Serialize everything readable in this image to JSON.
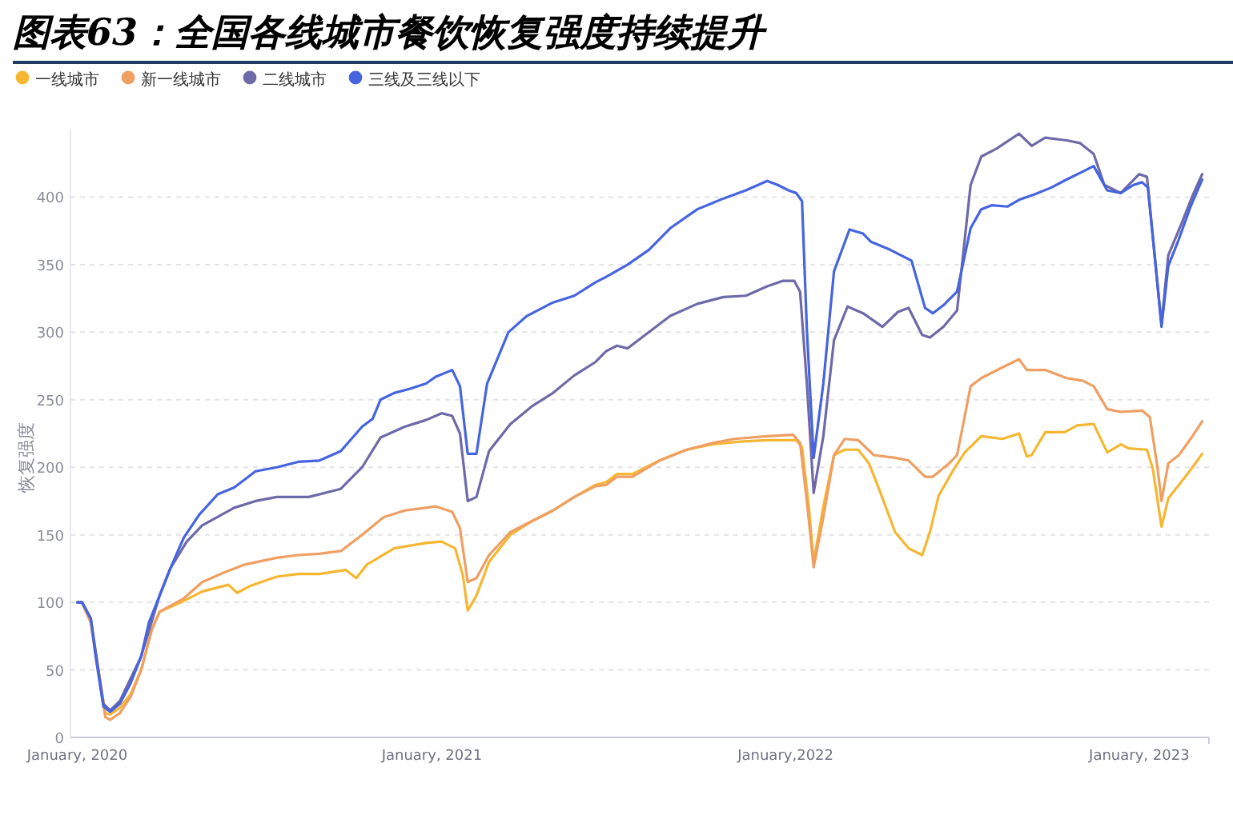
{
  "chart_data": {
    "type": "line",
    "title": "图表63：全国各线城市餐饮恢复强度持续提升",
    "ylabel": "恢复强度",
    "legend": "top left",
    "grid": "y",
    "xlim": [
      "2019-12-25",
      "2023-03-14"
    ],
    "ylim": [
      0,
      450
    ],
    "yticks": [
      0,
      50,
      100,
      150,
      200,
      250,
      300,
      350,
      400
    ],
    "xticks": [
      {
        "value": "2020-01-01",
        "label": "January, 2020"
      },
      {
        "value": "2021-01-01",
        "label": "January, 2021"
      },
      {
        "value": "2022-01-01",
        "label": "January,2022"
      },
      {
        "value": "2023-01-01",
        "label": "January, 2023"
      }
    ],
    "series": [
      {
        "name": "一线城市",
        "color": "#f5b731",
        "x": [
          "2020-01-01",
          "2020-01-06",
          "2020-01-15",
          "2020-01-30",
          "2020-02-04",
          "2020-02-14",
          "2020-02-25",
          "2020-03-07",
          "2020-03-18",
          "2020-03-26",
          "2020-04-17",
          "2020-05-09",
          "2020-06-05",
          "2020-06-14",
          "2020-06-27",
          "2020-07-25",
          "2020-08-16",
          "2020-09-07",
          "2020-10-04",
          "2020-10-15",
          "2020-10-26",
          "2020-11-23",
          "2020-12-26",
          "2021-01-11",
          "2021-01-25",
          "2021-02-02",
          "2021-02-07",
          "2021-02-16",
          "2021-03-01",
          "2021-03-23",
          "2021-04-14",
          "2021-05-06",
          "2021-05-28",
          "2021-06-19",
          "2021-06-30",
          "2021-07-11",
          "2021-07-27",
          "2021-08-24",
          "2021-09-21",
          "2021-10-18",
          "2021-11-15",
          "2021-12-13",
          "2022-01-12",
          "2022-01-18",
          "2022-01-25",
          "2022-01-30",
          "2022-02-09",
          "2022-02-20",
          "2022-03-03",
          "2022-03-17",
          "2022-03-28",
          "2022-04-08",
          "2022-04-24",
          "2022-05-08",
          "2022-05-22",
          "2022-05-30",
          "2022-06-08",
          "2022-06-24",
          "2022-07-05",
          "2022-07-22",
          "2022-08-13",
          "2022-08-30",
          "2022-09-07",
          "2022-09-12",
          "2022-09-26",
          "2022-10-16",
          "2022-10-29",
          "2022-11-15",
          "2022-11-29",
          "2022-12-13",
          "2022-12-21",
          "2023-01-09",
          "2023-01-15",
          "2023-01-24",
          "2023-01-31",
          "2023-02-11",
          "2023-02-23",
          "2023-03-07"
        ],
        "values": [
          100,
          100,
          85,
          18,
          17,
          22,
          32,
          50,
          80,
          93,
          100,
          108,
          113,
          107,
          112,
          119,
          121,
          121,
          124,
          118,
          128,
          140,
          144,
          145,
          140,
          120,
          94,
          105,
          130,
          150,
          160,
          168,
          178,
          187,
          189,
          195,
          195,
          205,
          213,
          217,
          219,
          220,
          220,
          215,
          171,
          130,
          171,
          209,
          213,
          213,
          203,
          183,
          152,
          140,
          135,
          152,
          179,
          199,
          211,
          223,
          221,
          225,
          208,
          209,
          226,
          226,
          231,
          232,
          211,
          217,
          214,
          213,
          199,
          156,
          177,
          187,
          198,
          210
        ]
      },
      {
        "name": "新一线城市",
        "color": "#ef9f62",
        "x": [
          "2020-01-01",
          "2020-01-06",
          "2020-01-15",
          "2020-01-30",
          "2020-02-04",
          "2020-02-14",
          "2020-02-25",
          "2020-03-07",
          "2020-03-18",
          "2020-03-26",
          "2020-04-20",
          "2020-05-09",
          "2020-05-31",
          "2020-06-22",
          "2020-07-25",
          "2020-08-16",
          "2020-09-07",
          "2020-09-29",
          "2020-10-21",
          "2020-11-12",
          "2020-12-04",
          "2020-12-26",
          "2021-01-05",
          "2021-01-22",
          "2021-01-30",
          "2021-02-07",
          "2021-02-16",
          "2021-03-01",
          "2021-03-23",
          "2021-04-14",
          "2021-05-06",
          "2021-05-28",
          "2021-06-19",
          "2021-06-30",
          "2021-07-11",
          "2021-07-27",
          "2021-08-24",
          "2021-09-21",
          "2021-10-18",
          "2021-11-09",
          "2021-12-13",
          "2022-01-09",
          "2022-01-16",
          "2022-01-23",
          "2022-01-30",
          "2022-02-09",
          "2022-02-20",
          "2022-03-03",
          "2022-03-17",
          "2022-04-02",
          "2022-04-24",
          "2022-05-08",
          "2022-05-25",
          "2022-06-02",
          "2022-06-19",
          "2022-06-27",
          "2022-07-11",
          "2022-07-22",
          "2022-08-13",
          "2022-08-30",
          "2022-09-07",
          "2022-09-26",
          "2022-10-18",
          "2022-11-04",
          "2022-11-15",
          "2022-11-29",
          "2022-12-13",
          "2023-01-04",
          "2023-01-12",
          "2023-01-20",
          "2023-01-24",
          "2023-01-31",
          "2023-02-11",
          "2023-02-23",
          "2023-03-07"
        ],
        "values": [
          100,
          100,
          85,
          15,
          13,
          18,
          30,
          50,
          80,
          93,
          103,
          115,
          122,
          128,
          133,
          135,
          136,
          138,
          150,
          163,
          168,
          170,
          171,
          167,
          155,
          115,
          118,
          135,
          152,
          160,
          168,
          178,
          186,
          187,
          193,
          193,
          205,
          213,
          218,
          221,
          223,
          224,
          218,
          175,
          126,
          163,
          209,
          221,
          220,
          209,
          207,
          205,
          193,
          193,
          203,
          209,
          260,
          266,
          274,
          280,
          272,
          272,
          266,
          264,
          260,
          243,
          241,
          242,
          237,
          199,
          175,
          203,
          209,
          221,
          234
        ]
      },
      {
        "name": "二线城市",
        "color": "#6e6aa8",
        "x": [
          "2020-01-01",
          "2020-01-06",
          "2020-01-15",
          "2020-01-28",
          "2020-02-04",
          "2020-02-14",
          "2020-03-07",
          "2020-03-26",
          "2020-04-06",
          "2020-04-23",
          "2020-05-09",
          "2020-06-11",
          "2020-07-03",
          "2020-07-25",
          "2020-08-27",
          "2020-09-29",
          "2020-10-21",
          "2020-11-09",
          "2020-12-04",
          "2020-12-26",
          "2021-01-11",
          "2021-01-22",
          "2021-01-30",
          "2021-02-07",
          "2021-02-16",
          "2021-03-01",
          "2021-03-23",
          "2021-04-14",
          "2021-05-06",
          "2021-05-28",
          "2021-06-19",
          "2021-06-30",
          "2021-07-11",
          "2021-07-22",
          "2021-08-13",
          "2021-09-04",
          "2021-10-02",
          "2021-10-29",
          "2021-11-21",
          "2021-12-13",
          "2021-12-29",
          "2022-01-10",
          "2022-01-16",
          "2022-01-23",
          "2022-01-30",
          "2022-02-09",
          "2022-02-20",
          "2022-03-06",
          "2022-03-22",
          "2022-04-11",
          "2022-04-27",
          "2022-05-08",
          "2022-05-22",
          "2022-05-30",
          "2022-06-13",
          "2022-06-27",
          "2022-07-11",
          "2022-07-22",
          "2022-08-07",
          "2022-08-30",
          "2022-09-12",
          "2022-09-26",
          "2022-10-18",
          "2022-11-01",
          "2022-11-15",
          "2022-11-26",
          "2022-12-13",
          "2023-01-01",
          "2023-01-09",
          "2023-01-18",
          "2023-01-24",
          "2023-01-31",
          "2023-02-14",
          "2023-02-25",
          "2023-03-07"
        ],
        "values": [
          100,
          100,
          88,
          25,
          20,
          27,
          60,
          105,
          125,
          145,
          157,
          170,
          175,
          178,
          178,
          184,
          200,
          222,
          230,
          235,
          240,
          238,
          225,
          175,
          178,
          212,
          232,
          245,
          255,
          268,
          278,
          286,
          290,
          288,
          300,
          312,
          321,
          326,
          327,
          334,
          338,
          338,
          330,
          262,
          181,
          223,
          294,
          319,
          314,
          304,
          315,
          318,
          298,
          296,
          304,
          316,
          409,
          430,
          436,
          447,
          438,
          444,
          442,
          440,
          432,
          409,
          403,
          417,
          415,
          349,
          306,
          357,
          381,
          401,
          417
        ]
      },
      {
        "name": "三线及三线以下",
        "color": "#4664e0",
        "x": [
          "2020-01-01",
          "2020-01-06",
          "2020-01-15",
          "2020-01-20",
          "2020-01-28",
          "2020-02-04",
          "2020-02-14",
          "2020-02-25",
          "2020-03-07",
          "2020-03-15",
          "2020-03-26",
          "2020-04-06",
          "2020-04-20",
          "2020-05-06",
          "2020-05-25",
          "2020-06-11",
          "2020-07-03",
          "2020-07-25",
          "2020-08-16",
          "2020-09-07",
          "2020-09-29",
          "2020-10-21",
          "2020-11-01",
          "2020-11-09",
          "2020-11-23",
          "2020-12-09",
          "2020-12-26",
          "2021-01-05",
          "2021-01-22",
          "2021-01-30",
          "2021-02-07",
          "2021-02-16",
          "2021-02-27",
          "2021-03-21",
          "2021-04-09",
          "2021-05-06",
          "2021-05-28",
          "2021-06-19",
          "2021-06-30",
          "2021-07-22",
          "2021-08-13",
          "2021-09-04",
          "2021-10-02",
          "2021-10-29",
          "2021-11-21",
          "2021-12-13",
          "2021-12-24",
          "2022-01-04",
          "2022-01-12",
          "2022-01-18",
          "2022-01-23",
          "2022-01-30",
          "2022-02-09",
          "2022-02-20",
          "2022-03-08",
          "2022-03-22",
          "2022-03-30",
          "2022-04-19",
          "2022-05-11",
          "2022-05-25",
          "2022-06-02",
          "2022-06-13",
          "2022-06-27",
          "2022-07-11",
          "2022-07-22",
          "2022-08-02",
          "2022-08-18",
          "2022-08-30",
          "2022-09-15",
          "2022-10-02",
          "2022-10-18",
          "2022-11-04",
          "2022-11-15",
          "2022-11-29",
          "2022-12-13",
          "2022-12-26",
          "2023-01-04",
          "2023-01-10",
          "2023-01-18",
          "2023-01-24",
          "2023-01-31",
          "2023-02-11",
          "2023-02-23",
          "2023-03-07"
        ],
        "values": [
          100,
          100,
          88,
          60,
          23,
          19,
          25,
          40,
          60,
          85,
          105,
          125,
          148,
          165,
          180,
          185,
          197,
          200,
          204,
          205,
          212,
          230,
          236,
          250,
          255,
          258,
          262,
          267,
          272,
          260,
          210,
          210,
          262,
          300,
          312,
          322,
          327,
          337,
          341,
          350,
          361,
          377,
          391,
          399,
          405,
          412,
          409,
          405,
          403,
          397,
          302,
          207,
          262,
          345,
          376,
          373,
          367,
          361,
          353,
          318,
          314,
          320,
          330,
          377,
          391,
          394,
          393,
          398,
          402,
          407,
          413,
          419,
          423,
          405,
          403,
          409,
          411,
          407,
          349,
          304,
          349,
          369,
          393,
          413
        ]
      }
    ]
  }
}
